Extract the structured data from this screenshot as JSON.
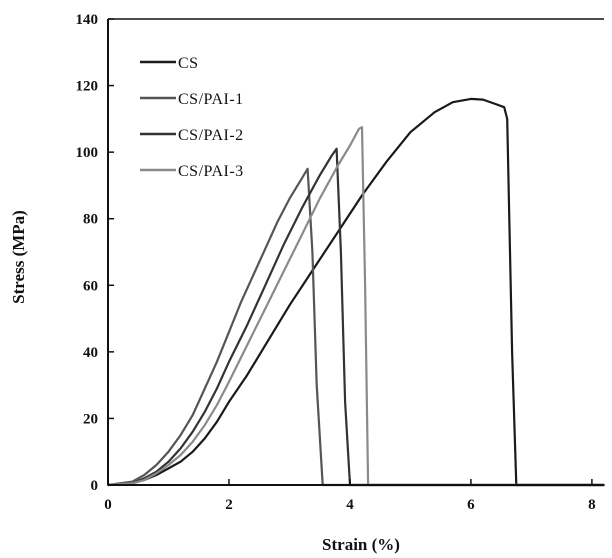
{
  "chart_data": {
    "type": "line",
    "title": "",
    "xlabel": "Strain (%)",
    "ylabel": "Stress (MPa)",
    "xlim": [
      0,
      8.2
    ],
    "ylim": [
      0,
      140
    ],
    "xticks": [
      0,
      2,
      4,
      6,
      8
    ],
    "yticks": [
      0,
      20,
      40,
      60,
      80,
      100,
      120,
      140
    ],
    "legend_position": "top-left",
    "grid": false,
    "series": [
      {
        "name": "CS",
        "color": "#1a1a1a",
        "x": [
          0,
          0.4,
          0.6,
          0.8,
          1.0,
          1.2,
          1.4,
          1.6,
          1.8,
          2.0,
          2.3,
          2.6,
          3.0,
          3.4,
          3.8,
          4.2,
          4.6,
          5.0,
          5.4,
          5.7,
          6.0,
          6.2,
          6.4,
          6.55,
          6.6,
          6.68,
          6.75,
          7.0,
          8.2
        ],
        "y": [
          0,
          0.5,
          1.5,
          3,
          5,
          7,
          10,
          14,
          19,
          25,
          33,
          42,
          54,
          65,
          76,
          87,
          97,
          106,
          112,
          115,
          116,
          115.8,
          114.5,
          113.5,
          110,
          40,
          0,
          0,
          0
        ]
      },
      {
        "name": "CS/PAI-1",
        "color": "#555555",
        "x": [
          0,
          0.4,
          0.6,
          0.8,
          1.0,
          1.2,
          1.4,
          1.6,
          1.8,
          2.0,
          2.2,
          2.4,
          2.6,
          2.8,
          3.0,
          3.2,
          3.3,
          3.38,
          3.45,
          3.55,
          8.2
        ],
        "y": [
          0,
          1,
          3,
          6,
          10,
          15,
          21,
          29,
          37,
          46,
          55,
          63,
          71,
          79,
          86,
          92,
          95,
          70,
          30,
          0,
          0
        ]
      },
      {
        "name": "CS/PAI-2",
        "color": "#333333",
        "x": [
          0,
          0.4,
          0.6,
          0.8,
          1.0,
          1.2,
          1.4,
          1.6,
          1.8,
          2.0,
          2.3,
          2.6,
          2.9,
          3.2,
          3.5,
          3.7,
          3.78,
          3.85,
          3.92,
          4.0,
          8.2
        ],
        "y": [
          0,
          0.5,
          2,
          4,
          7,
          11,
          16,
          22,
          29,
          37,
          48,
          60,
          72,
          83,
          93,
          99,
          101,
          70,
          25,
          0,
          0
        ]
      },
      {
        "name": "CS/PAI-3",
        "color": "#8a8a8a",
        "x": [
          0,
          0.4,
          0.6,
          0.8,
          1.0,
          1.2,
          1.4,
          1.6,
          1.8,
          2.0,
          2.3,
          2.6,
          2.9,
          3.2,
          3.5,
          3.8,
          4.0,
          4.15,
          4.2,
          4.25,
          4.3,
          8.2
        ],
        "y": [
          0,
          0.5,
          1.5,
          3.5,
          6,
          9,
          13,
          18,
          24,
          31,
          42,
          53,
          64,
          75,
          86,
          96,
          102,
          107,
          107.5,
          60,
          0,
          0
        ]
      }
    ]
  }
}
